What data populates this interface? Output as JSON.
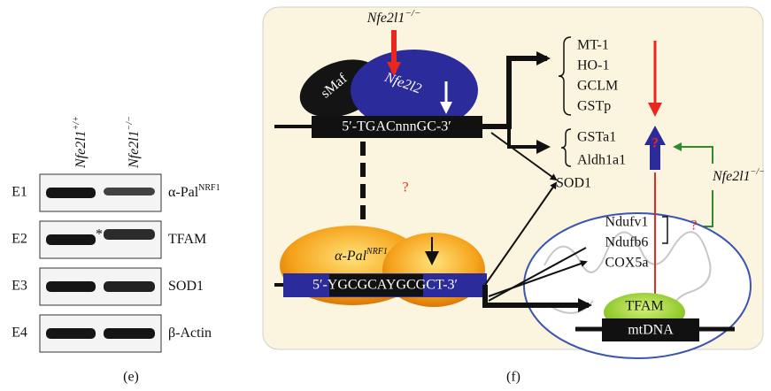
{
  "panel_e": {
    "caption": "(e)",
    "genotypes": [
      {
        "gene": "Nfe2l1",
        "sup": "+/+"
      },
      {
        "gene": "Nfe2l1",
        "sup": "−/−"
      }
    ],
    "rows": [
      {
        "id": "E1",
        "protein": "α-Pal",
        "sup": "NRF1"
      },
      {
        "id": "E2",
        "protein": "TFAM"
      },
      {
        "id": "E3",
        "protein": "SOD1"
      },
      {
        "id": "E4",
        "protein": "β-Actin"
      }
    ],
    "marker": "*"
  },
  "panel_f": {
    "caption": "(f)",
    "knockout_top": {
      "gene": "Nfe2l1",
      "sup": "−/−"
    },
    "smaf": "sMaf",
    "nfe2l2": "Nfe2l2",
    "are_motif": "5′-TGACnnnGC-3′",
    "question_marks": [
      "?",
      "?",
      "?"
    ],
    "targets_down": [
      "MT-1",
      "HO-1",
      "GCLM",
      "GSTp"
    ],
    "targets_up": [
      "GSTa1",
      "Aldh1a1"
    ],
    "sod1": "SOD1",
    "knockout_right": {
      "gene": "Nfe2l1",
      "sup": "−/−"
    },
    "pal": {
      "protein": "α-Pal",
      "sup": "NRF1"
    },
    "pal_motif": "5′-YGCGCAYGCGCT-3′",
    "mito_genes": [
      "Ndufv1",
      "Ndufb6",
      "COX5a"
    ],
    "tfam": "TFAM",
    "mtdna": "mtDNA"
  }
}
